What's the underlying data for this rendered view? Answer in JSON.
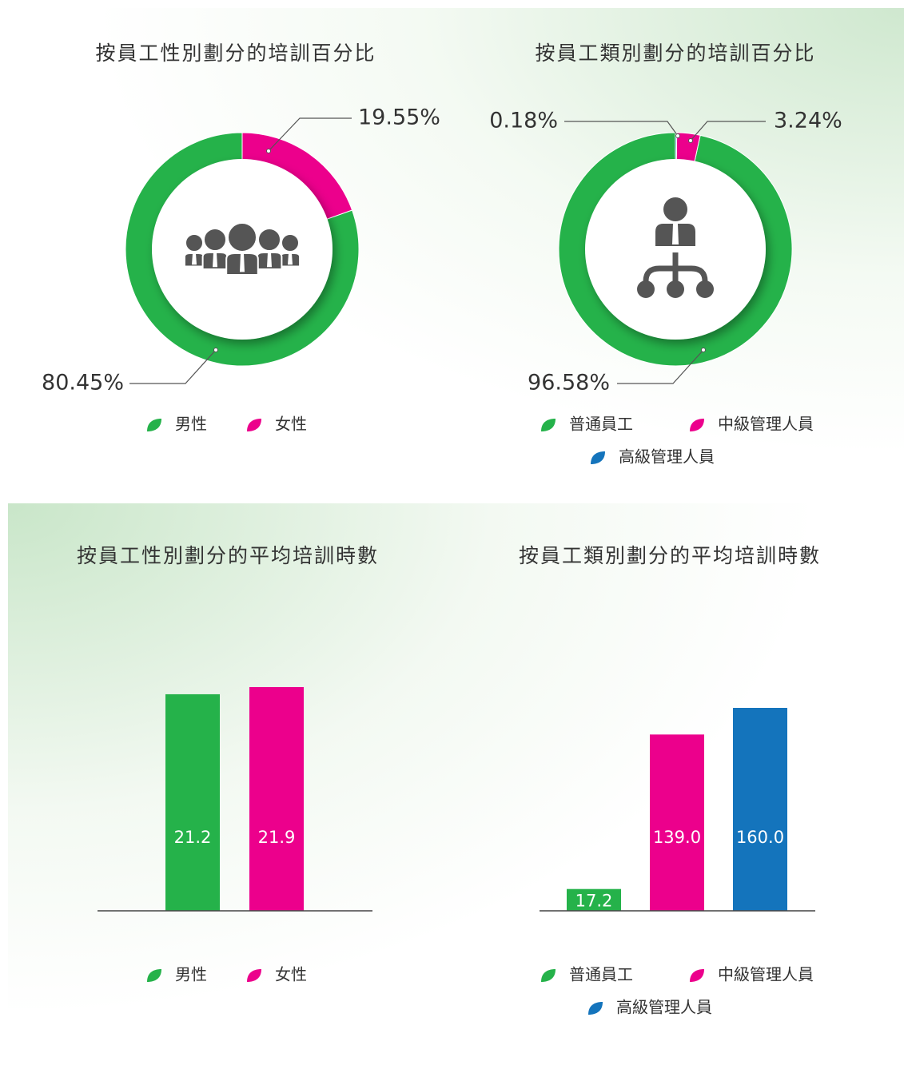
{
  "chart_data": [
    {
      "type": "donut",
      "title": "按員工性別劃分的培訓百分比",
      "categories": [
        "男性",
        "女性"
      ],
      "values": [
        80.45,
        19.55
      ],
      "value_labels": [
        "80.45%",
        "19.55%"
      ],
      "colors": [
        "#25b24a",
        "#ec008c"
      ]
    },
    {
      "type": "donut",
      "title": "按員工類別劃分的培訓百分比",
      "categories": [
        "普通員工",
        "中級管理人員",
        "高級管理人員"
      ],
      "values": [
        96.58,
        3.24,
        0.18
      ],
      "value_labels": [
        "96.58%",
        "3.24%",
        "0.18%"
      ],
      "colors": [
        "#25b24a",
        "#ec008c",
        "#1474bc"
      ]
    },
    {
      "type": "bar",
      "title": "按員工性別劃分的平均培訓時數",
      "categories": [
        "男性",
        "女性"
      ],
      "values": [
        21.2,
        21.9
      ],
      "colors": [
        "#25b24a",
        "#ec008c"
      ]
    },
    {
      "type": "bar",
      "title": "按員工類別劃分的平均培訓時數",
      "categories": [
        "普通員工",
        "中級管理人員",
        "高級管理人員"
      ],
      "values": [
        17.2,
        139,
        160
      ],
      "value_labels": [
        "17.2",
        "139.0",
        "160.0"
      ],
      "colors": [
        "#25b24a",
        "#ec008c",
        "#1474bc"
      ]
    }
  ]
}
